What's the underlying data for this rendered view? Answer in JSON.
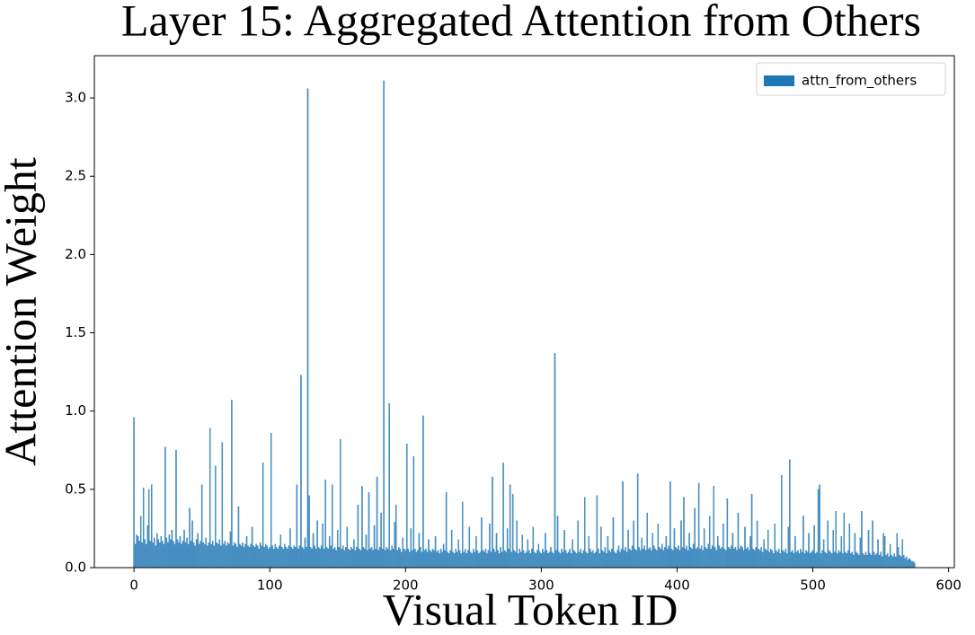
{
  "chart_data": {
    "type": "bar",
    "title": "Layer 15: Aggregated Attention from Others",
    "xlabel": "Visual Token ID",
    "ylabel": "Attention Weight",
    "series": [
      {
        "name": "attn_from_others",
        "color": "#1f77b4",
        "x": [
          0,
          1,
          2,
          3,
          4,
          5,
          6,
          7,
          8,
          9,
          10,
          11,
          12,
          13,
          14,
          15,
          16,
          17,
          18,
          19,
          20,
          21,
          22,
          23,
          24,
          25,
          26,
          27,
          28,
          29,
          30,
          31,
          32,
          33,
          34,
          35,
          36,
          37,
          38,
          39,
          40,
          41,
          42,
          43,
          44,
          45,
          46,
          47,
          48,
          49,
          50,
          51,
          52,
          53,
          54,
          55,
          56,
          57,
          58,
          59,
          60,
          61,
          62,
          63,
          64,
          65,
          66,
          67,
          68,
          69,
          70,
          71,
          72,
          73,
          74,
          75,
          76,
          77,
          78,
          79,
          80,
          81,
          82,
          83,
          84,
          85,
          86,
          87,
          88,
          89,
          90,
          91,
          92,
          93,
          94,
          95,
          96,
          97,
          98,
          99,
          100,
          101,
          102,
          103,
          104,
          105,
          106,
          107,
          108,
          109,
          110,
          111,
          112,
          113,
          114,
          115,
          116,
          117,
          118,
          119,
          120,
          121,
          122,
          123,
          124,
          125,
          126,
          127,
          128,
          129,
          130,
          131,
          132,
          133,
          134,
          135,
          136,
          137,
          138,
          139,
          140,
          141,
          142,
          143,
          144,
          145,
          146,
          147,
          148,
          149,
          150,
          151,
          152,
          153,
          154,
          155,
          156,
          157,
          158,
          159,
          160,
          161,
          162,
          163,
          164,
          165,
          166,
          167,
          168,
          169,
          170,
          171,
          172,
          173,
          174,
          175,
          176,
          177,
          178,
          179,
          180,
          181,
          182,
          183,
          184,
          185,
          186,
          187,
          188,
          189,
          190,
          191,
          192,
          193,
          194,
          195,
          196,
          197,
          198,
          199,
          200,
          201,
          202,
          203,
          204,
          205,
          206,
          207,
          208,
          209,
          210,
          211,
          212,
          213,
          214,
          215,
          216,
          217,
          218,
          219,
          220,
          221,
          222,
          223,
          224,
          225,
          226,
          227,
          228,
          229,
          230,
          231,
          232,
          233,
          234,
          235,
          236,
          237,
          238,
          239,
          240,
          241,
          242,
          243,
          244,
          245,
          246,
          247,
          248,
          249,
          250,
          251,
          252,
          253,
          254,
          255,
          256,
          257,
          258,
          259,
          260,
          261,
          262,
          263,
          264,
          265,
          266,
          267,
          268,
          269,
          270,
          271,
          272,
          273,
          274,
          275,
          276,
          277,
          278,
          279,
          280,
          281,
          282,
          283,
          284,
          285,
          286,
          287,
          288,
          289,
          290,
          291,
          292,
          293,
          294,
          295,
          296,
          297,
          298,
          299,
          300,
          301,
          302,
          303,
          304,
          305,
          306,
          307,
          308,
          309,
          310,
          311,
          312,
          313,
          314,
          315,
          316,
          317,
          318,
          319,
          320,
          321,
          322,
          323,
          324,
          325,
          326,
          327,
          328,
          329,
          330,
          331,
          332,
          333,
          334,
          335,
          336,
          337,
          338,
          339,
          340,
          341,
          342,
          343,
          344,
          345,
          346,
          347,
          348,
          349,
          350,
          351,
          352,
          353,
          354,
          355,
          356,
          357,
          358,
          359,
          360,
          361,
          362,
          363,
          364,
          365,
          366,
          367,
          368,
          369,
          370,
          371,
          372,
          373,
          374,
          375,
          376,
          377,
          378,
          379,
          380,
          381,
          382,
          383,
          384,
          385,
          386,
          387,
          388,
          389,
          390,
          391,
          392,
          393,
          394,
          395,
          396,
          397,
          398,
          399,
          400,
          401,
          402,
          403,
          404,
          405,
          406,
          407,
          408,
          409,
          410,
          411,
          412,
          413,
          414,
          415,
          416,
          417,
          418,
          419,
          420,
          421,
          422,
          423,
          424,
          425,
          426,
          427,
          428,
          429,
          430,
          431,
          432,
          433,
          434,
          435,
          436,
          437,
          438,
          439,
          440,
          441,
          442,
          443,
          444,
          445,
          446,
          447,
          448,
          449,
          450,
          451,
          452,
          453,
          454,
          455,
          456,
          457,
          458,
          459,
          460,
          461,
          462,
          463,
          464,
          465,
          466,
          467,
          468,
          469,
          470,
          471,
          472,
          473,
          474,
          475,
          476,
          477,
          478,
          479,
          480,
          481,
          482,
          483,
          484,
          485,
          486,
          487,
          488,
          489,
          490,
          491,
          492,
          493,
          494,
          495,
          496,
          497,
          498,
          499,
          500,
          501,
          502,
          503,
          504,
          505,
          506,
          507,
          508,
          509,
          510,
          511,
          512,
          513,
          514,
          515,
          516,
          517,
          518,
          519,
          520,
          521,
          522,
          523,
          524,
          525,
          526,
          527,
          528,
          529,
          530,
          531,
          532,
          533,
          534,
          535,
          536,
          537,
          538,
          539,
          540,
          541,
          542,
          543,
          544,
          545,
          546,
          547,
          548,
          549,
          550,
          551,
          552,
          553,
          554,
          555,
          556,
          557,
          558,
          559,
          560,
          561,
          562,
          563,
          564,
          565,
          566,
          567,
          568,
          569,
          570,
          571,
          572,
          573,
          574,
          575
        ],
        "values": [
          0.96,
          0.15,
          0.21,
          0.2,
          0.17,
          0.33,
          0.16,
          0.51,
          0.18,
          0.15,
          0.27,
          0.5,
          0.17,
          0.53,
          0.16,
          0.19,
          0.14,
          0.22,
          0.18,
          0.16,
          0.2,
          0.17,
          0.15,
          0.77,
          0.19,
          0.16,
          0.21,
          0.18,
          0.24,
          0.17,
          0.15,
          0.75,
          0.18,
          0.16,
          0.2,
          0.15,
          0.17,
          0.24,
          0.16,
          0.19,
          0.15,
          0.38,
          0.17,
          0.3,
          0.16,
          0.14,
          0.18,
          0.22,
          0.15,
          0.17,
          0.53,
          0.16,
          0.15,
          0.19,
          0.14,
          0.16,
          0.89,
          0.15,
          0.17,
          0.14,
          0.65,
          0.16,
          0.15,
          0.18,
          0.14,
          0.8,
          0.15,
          0.17,
          0.14,
          0.16,
          0.15,
          0.23,
          1.07,
          0.14,
          0.16,
          0.15,
          0.13,
          0.39,
          0.15,
          0.14,
          0.16,
          0.13,
          0.15,
          0.2,
          0.14,
          0.13,
          0.15,
          0.26,
          0.14,
          0.13,
          0.15,
          0.14,
          0.12,
          0.16,
          0.14,
          0.67,
          0.13,
          0.15,
          0.14,
          0.12,
          0.13,
          0.86,
          0.14,
          0.12,
          0.15,
          0.13,
          0.12,
          0.14,
          0.21,
          0.13,
          0.12,
          0.15,
          0.13,
          0.12,
          0.14,
          0.25,
          0.13,
          0.12,
          0.14,
          0.13,
          0.53,
          0.12,
          0.14,
          1.23,
          0.13,
          0.12,
          0.19,
          0.13,
          3.06,
          0.46,
          0.13,
          0.12,
          0.22,
          0.14,
          0.12,
          0.3,
          0.13,
          0.12,
          0.14,
          0.28,
          0.12,
          0.56,
          0.13,
          0.12,
          0.2,
          0.14,
          0.53,
          0.12,
          0.13,
          0.11,
          0.24,
          0.13,
          0.82,
          0.12,
          0.14,
          0.11,
          0.13,
          0.26,
          0.12,
          0.11,
          0.13,
          0.12,
          0.18,
          0.11,
          0.13,
          0.4,
          0.12,
          0.11,
          0.52,
          0.13,
          0.12,
          0.21,
          0.11,
          0.48,
          0.12,
          0.13,
          0.11,
          0.27,
          0.12,
          0.58,
          0.11,
          0.13,
          0.35,
          0.12,
          3.11,
          0.11,
          0.13,
          0.12,
          1.05,
          0.11,
          0.14,
          0.12,
          0.29,
          0.4,
          0.11,
          0.13,
          0.12,
          0.1,
          0.19,
          0.12,
          0.11,
          0.79,
          0.12,
          0.1,
          0.25,
          0.11,
          0.71,
          0.12,
          0.1,
          0.11,
          0.22,
          0.13,
          0.1,
          0.97,
          0.11,
          0.12,
          0.1,
          0.18,
          0.11,
          0.1,
          0.12,
          0.11,
          0.2,
          0.1,
          0.11,
          0.09,
          0.12,
          0.1,
          0.15,
          0.11,
          0.48,
          0.1,
          0.09,
          0.11,
          0.24,
          0.1,
          0.09,
          0.12,
          0.1,
          0.18,
          0.11,
          0.09,
          0.42,
          0.1,
          0.12,
          0.09,
          0.11,
          0.26,
          0.1,
          0.09,
          0.12,
          0.1,
          0.2,
          0.11,
          0.09,
          0.1,
          0.32,
          0.11,
          0.1,
          0.12,
          0.09,
          0.11,
          0.28,
          0.1,
          0.58,
          0.12,
          0.1,
          0.22,
          0.11,
          0.09,
          0.13,
          0.1,
          0.67,
          0.11,
          0.1,
          0.25,
          0.12,
          0.53,
          0.1,
          0.47,
          0.11,
          0.1,
          0.3,
          0.09,
          0.12,
          0.1,
          0.21,
          0.11,
          0.09,
          0.1,
          0.18,
          0.11,
          0.09,
          0.12,
          0.26,
          0.1,
          0.09,
          0.11,
          0.15,
          0.1,
          0.09,
          0.12,
          0.1,
          0.22,
          0.11,
          0.09,
          0.1,
          0.13,
          0.1,
          0.09,
          1.37,
          0.11,
          0.33,
          0.1,
          0.09,
          0.12,
          0.1,
          0.24,
          0.11,
          0.09,
          0.1,
          0.12,
          0.09,
          0.18,
          0.11,
          0.1,
          0.09,
          0.3,
          0.1,
          0.12,
          0.09,
          0.11,
          0.45,
          0.1,
          0.09,
          0.2,
          0.12,
          0.1,
          0.11,
          0.09,
          0.1,
          0.46,
          0.12,
          0.09,
          0.26,
          0.11,
          0.1,
          0.13,
          0.09,
          0.2,
          0.11,
          0.1,
          0.12,
          0.32,
          0.1,
          0.09,
          0.11,
          0.14,
          0.1,
          0.12,
          0.55,
          0.11,
          0.13,
          0.1,
          0.24,
          0.12,
          0.11,
          0.14,
          0.3,
          0.12,
          0.11,
          0.6,
          0.13,
          0.11,
          0.19,
          0.12,
          0.14,
          0.11,
          0.35,
          0.12,
          0.13,
          0.11,
          0.22,
          0.14,
          0.12,
          0.11,
          0.28,
          0.13,
          0.12,
          0.15,
          0.11,
          0.13,
          0.2,
          0.12,
          0.14,
          0.55,
          0.12,
          0.11,
          0.25,
          0.13,
          0.12,
          0.14,
          0.11,
          0.3,
          0.13,
          0.45,
          0.12,
          0.14,
          0.11,
          0.22,
          0.13,
          0.12,
          0.15,
          0.38,
          0.12,
          0.13,
          0.54,
          0.12,
          0.14,
          0.11,
          0.25,
          0.13,
          0.12,
          0.15,
          0.33,
          0.12,
          0.14,
          0.52,
          0.13,
          0.11,
          0.2,
          0.14,
          0.12,
          0.13,
          0.28,
          0.12,
          0.11,
          0.44,
          0.13,
          0.12,
          0.14,
          0.22,
          0.12,
          0.13,
          0.11,
          0.35,
          0.12,
          0.14,
          0.13,
          0.11,
          0.26,
          0.12,
          0.13,
          0.11,
          0.2,
          0.47,
          0.12,
          0.11,
          0.13,
          0.3,
          0.12,
          0.11,
          0.13,
          0.1,
          0.18,
          0.12,
          0.11,
          0.24,
          0.1,
          0.12,
          0.11,
          0.09,
          0.28,
          0.11,
          0.1,
          0.12,
          0.09,
          0.59,
          0.11,
          0.1,
          0.12,
          0.09,
          0.26,
          0.69,
          0.1,
          0.11,
          0.09,
          0.2,
          0.1,
          0.11,
          0.09,
          0.12,
          0.1,
          0.33,
          0.09,
          0.11,
          0.1,
          0.22,
          0.09,
          0.1,
          0.11,
          0.27,
          0.09,
          0.1,
          0.5,
          0.53,
          0.09,
          0.11,
          0.18,
          0.1,
          0.09,
          0.3,
          0.11,
          0.1,
          0.09,
          0.24,
          0.1,
          0.36,
          0.09,
          0.11,
          0.1,
          0.2,
          0.09,
          0.35,
          0.1,
          0.09,
          0.11,
          0.28,
          0.09,
          0.1,
          0.08,
          0.22,
          0.1,
          0.09,
          0.08,
          0.19,
          0.36,
          0.09,
          0.08,
          0.1,
          0.08,
          0.24,
          0.09,
          0.08,
          0.3,
          0.1,
          0.08,
          0.09,
          0.18,
          0.08,
          0.1,
          0.07,
          0.22,
          0.2,
          0.08,
          0.09,
          0.07,
          0.15,
          0.08,
          0.07,
          0.09,
          0.07,
          0.22,
          0.13,
          0.08,
          0.07,
          0.18,
          0.08,
          0.06,
          0.07,
          0.05,
          0.06,
          0.05,
          0.04,
          0.04,
          0.03
        ]
      }
    ],
    "xlim": [
      -29.2,
      604.2
    ],
    "xticks": [
      0,
      100,
      200,
      300,
      400,
      500,
      600
    ],
    "ylim": [
      0,
      3.27
    ],
    "yticks": [
      {
        "value": 0,
        "label": "0.0"
      },
      0.5,
      {
        "value": 1,
        "label": "1.0"
      },
      1.5,
      {
        "value": 2,
        "label": "2.0"
      },
      2.5,
      {
        "value": 3,
        "label": "3.0"
      }
    ],
    "legend": "upper right",
    "grid": false
  }
}
